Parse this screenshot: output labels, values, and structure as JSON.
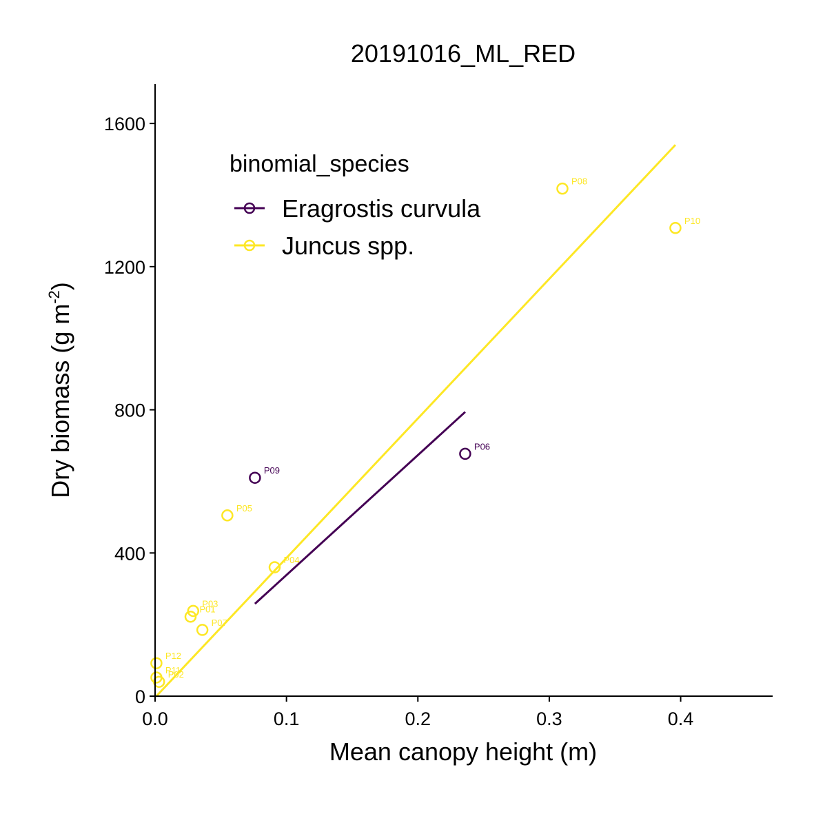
{
  "chart_data": {
    "type": "scatter",
    "title": "20191016_ML_RED",
    "xlabel": "Mean canopy height (m)",
    "ylabel_main": "Dry biomass (g m",
    "ylabel_sup": "-2",
    "ylabel_end": ")",
    "xlim": [
      0,
      0.47
    ],
    "ylim": [
      0,
      1710
    ],
    "xticks": [
      0.0,
      0.1,
      0.2,
      0.3,
      0.4
    ],
    "xtick_labels": [
      "0.0",
      "0.1",
      "0.2",
      "0.3",
      "0.4"
    ],
    "yticks": [
      0,
      400,
      800,
      1200,
      1600
    ],
    "ytick_labels": [
      "0",
      "400",
      "800",
      "1200",
      "1600"
    ],
    "grid": false,
    "legend": {
      "title": "binomial_species",
      "placement": "top-left",
      "entries": [
        "Eragrostis curvula",
        "Juncus spp."
      ]
    },
    "series": [
      {
        "name": "Eragrostis curvula",
        "color": "#440154",
        "points": [
          {
            "label": "P09",
            "x": 0.076,
            "y": 610
          },
          {
            "label": "P06",
            "x": 0.236,
            "y": 677
          }
        ],
        "fit": [
          [
            0.076,
            258
          ],
          [
            0.236,
            794
          ]
        ]
      },
      {
        "name": "Juncus spp.",
        "color": "#FDE725",
        "points": [
          {
            "label": "P08",
            "x": 0.31,
            "y": 1418
          },
          {
            "label": "P10",
            "x": 0.396,
            "y": 1308
          },
          {
            "label": "P05",
            "x": 0.055,
            "y": 505
          },
          {
            "label": "P04",
            "x": 0.091,
            "y": 360
          },
          {
            "label": "P03",
            "x": 0.029,
            "y": 238
          },
          {
            "label": "P01",
            "x": 0.027,
            "y": 222
          },
          {
            "label": "P07",
            "x": 0.036,
            "y": 185
          },
          {
            "label": "P12",
            "x": 0.001,
            "y": 92
          },
          {
            "label": "P11",
            "x": 0.001,
            "y": 52
          },
          {
            "label": "P02",
            "x": 0.003,
            "y": 40
          }
        ],
        "fit": [
          [
            0.001,
            0
          ],
          [
            0.396,
            1540
          ]
        ]
      }
    ]
  }
}
